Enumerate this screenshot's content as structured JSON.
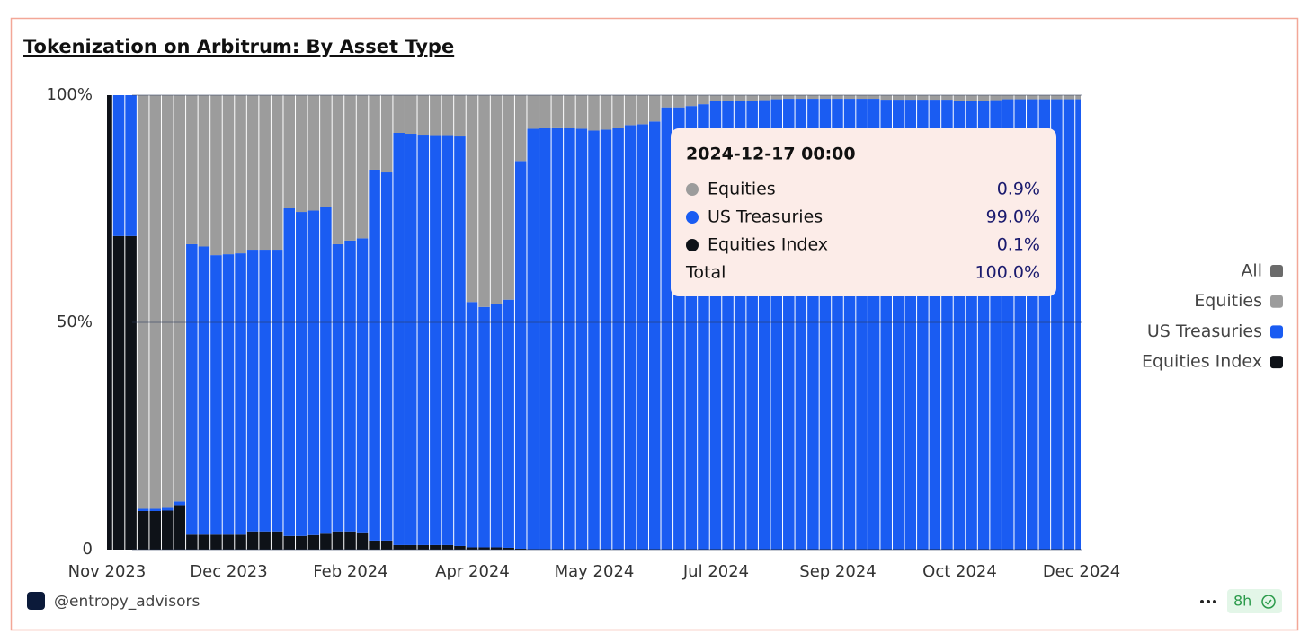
{
  "chart_data": {
    "type": "stacked_bar",
    "title": "Tokenization on Arbitrum: By Asset Type",
    "categories": [
      "Nov 2023",
      null,
      null,
      null,
      null,
      null,
      null,
      null,
      null,
      null,
      "Dec 2023",
      null,
      null,
      null,
      null,
      null,
      null,
      null,
      null,
      null,
      "Feb 2024",
      null,
      null,
      null,
      null,
      null,
      null,
      null,
      null,
      null,
      "Apr 2024",
      null,
      null,
      null,
      null,
      null,
      null,
      null,
      null,
      null,
      "May 2024",
      null,
      null,
      null,
      null,
      null,
      null,
      null,
      null,
      null,
      "Jul 2024",
      null,
      null,
      null,
      null,
      null,
      null,
      null,
      null,
      null,
      "Sep 2024",
      null,
      null,
      null,
      null,
      null,
      null,
      null,
      null,
      null,
      "Oct 2024",
      null,
      null,
      null,
      null,
      null,
      null,
      null,
      null,
      null,
      "Dec 2024"
    ],
    "series": [
      {
        "name": "Equities",
        "color": "#9c9c9c",
        "values": [
          0,
          0,
          0,
          91,
          91,
          90.8,
          89.4,
          32.8,
          33.3,
          35.2,
          35,
          34.8,
          34,
          34,
          34,
          24.9,
          25.7,
          25.4,
          24.7,
          32.8,
          32,
          31.5,
          16.4,
          17,
          8.3,
          8.5,
          8.7,
          8.8,
          8.8,
          8.9,
          45.5,
          46.6,
          46,
          45,
          14.5,
          7.4,
          7.2,
          7.1,
          7.2,
          7.4,
          7.8,
          7.6,
          7.3,
          6.6,
          6.4,
          5.8,
          2.7,
          2.7,
          2.4,
          2,
          1.3,
          1.2,
          1.2,
          1.2,
          1.1,
          0.9,
          0.8,
          0.8,
          0.8,
          0.8,
          0.8,
          0.8,
          0.8,
          0.8,
          1,
          1,
          1,
          1,
          1,
          1,
          1.2,
          1.2,
          1.2,
          1.1,
          0.9,
          0.9,
          0.9,
          0.9,
          0.9,
          0.9,
          0.9
        ]
      },
      {
        "name": "US Treasuries",
        "color": "#1a5cf2",
        "values": [
          0,
          31,
          31,
          0.5,
          0.5,
          0.6,
          0.8,
          63.9,
          63.4,
          61.5,
          61.7,
          61.9,
          62,
          62,
          62,
          72.1,
          71.3,
          71.4,
          71.8,
          63.2,
          64,
          64.7,
          81.6,
          81,
          90.7,
          90.5,
          90.3,
          90.2,
          90.2,
          90.3,
          54,
          52.9,
          53.5,
          54.6,
          85.3,
          92.5,
          92.7,
          92.8,
          92.7,
          92.5,
          92.1,
          92.3,
          92.6,
          93.3,
          93.5,
          94.1,
          97.2,
          97.2,
          97.5,
          97.9,
          98.6,
          98.7,
          98.7,
          98.7,
          98.8,
          99,
          99.1,
          99.1,
          99.1,
          99.1,
          99.1,
          99.1,
          99.1,
          99.1,
          98.9,
          98.9,
          98.9,
          98.9,
          98.9,
          98.9,
          98.7,
          98.7,
          98.7,
          98.8,
          99,
          99,
          99,
          99,
          99,
          99,
          99
        ]
      },
      {
        "name": "Equities Index",
        "color": "#0e1218",
        "values": [
          100,
          69,
          69,
          8.5,
          8.5,
          8.6,
          9.8,
          3.3,
          3.3,
          3.3,
          3.3,
          3.3,
          4,
          4,
          4,
          3,
          3,
          3.2,
          3.5,
          4,
          4,
          3.8,
          2,
          2,
          1,
          1,
          1,
          1,
          1,
          0.8,
          0.5,
          0.5,
          0.5,
          0.4,
          0.2,
          0.1,
          0.1,
          0.1,
          0.1,
          0.1,
          0.1,
          0.1,
          0.1,
          0.1,
          0.1,
          0.1,
          0.1,
          0.1,
          0.1,
          0.1,
          0.1,
          0.1,
          0.1,
          0.1,
          0.1,
          0.1,
          0.1,
          0.1,
          0.1,
          0.1,
          0.1,
          0.1,
          0.1,
          0.1,
          0.1,
          0.1,
          0.1,
          0.1,
          0.1,
          0.1,
          0.1,
          0.1,
          0.1,
          0.1,
          0.1,
          0.1,
          0.1,
          0.1,
          0.1,
          0.1,
          0.1
        ]
      }
    ],
    "ylim": [
      0,
      100
    ],
    "yticks": [
      0,
      {
        "value": 50,
        "label": "50%"
      },
      {
        "value": 100,
        "label": "100%"
      }
    ],
    "grid": true,
    "legend": {
      "position": "right",
      "all_label": "All",
      "all_color": "#6b6b6b"
    },
    "tooltip": {
      "date": "2024-12-17 00:00",
      "rows": [
        {
          "name": "Equities",
          "color": "#9c9c9c",
          "value": 0.9,
          "label": "0.9%"
        },
        {
          "name": "US Treasuries",
          "color": "#1a5cf2",
          "value": 99.0,
          "label": "99.0%"
        },
        {
          "name": "Equities Index",
          "color": "#0e1218",
          "value": 0.1,
          "label": "0.1%"
        }
      ],
      "total_name": "Total",
      "total": {
        "value": 100.0,
        "label": "100.0%"
      }
    }
  },
  "footer": {
    "handle": "@entropy_advisors",
    "age": "8h"
  }
}
